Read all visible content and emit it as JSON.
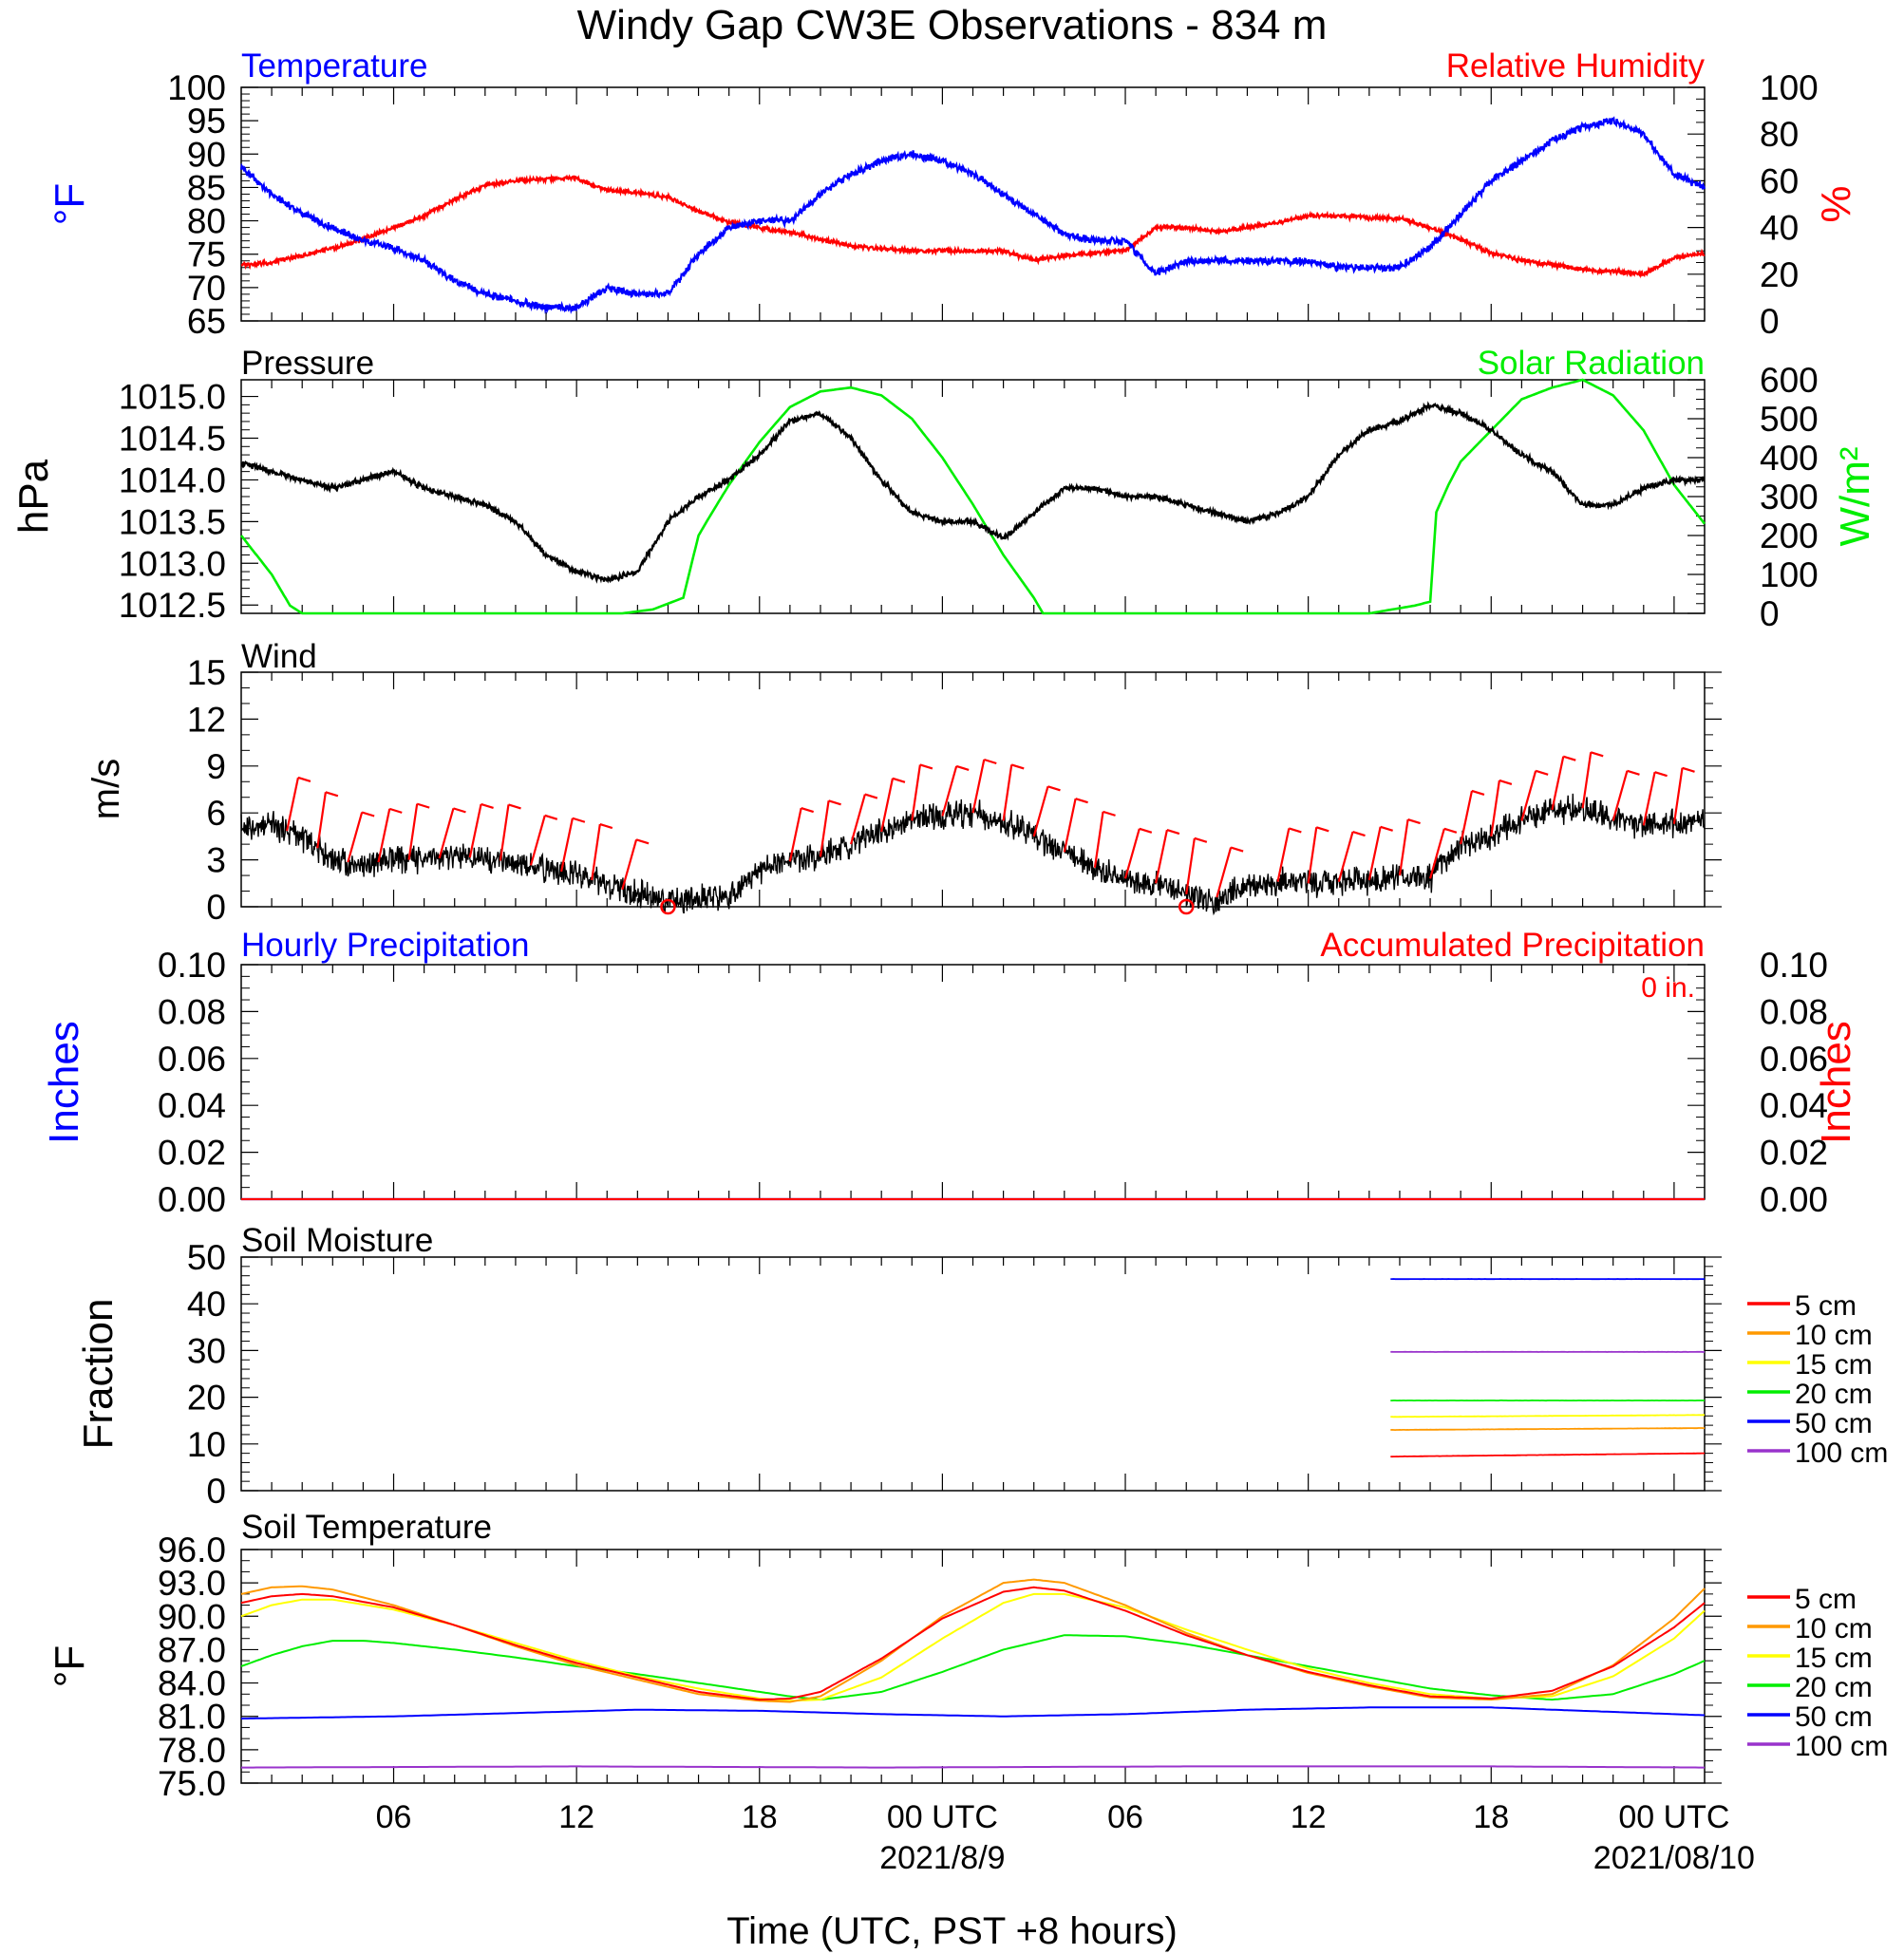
{
  "title": "Windy Gap CW3E Observations - 834 m",
  "xlabel": "Time (UTC, PST +8 hours)",
  "x_axis": {
    "range_hours_utc": [
      -1,
      47
    ],
    "ticks": [
      {
        "h": 4,
        "label": "06"
      },
      {
        "h": 10,
        "label": "12"
      },
      {
        "h": 16,
        "label": "18"
      },
      {
        "h": 22,
        "label": "00 UTC",
        "sub": "2021/8/9"
      },
      {
        "h": 28,
        "label": "06"
      },
      {
        "h": 34,
        "label": "12"
      },
      {
        "h": 40,
        "label": "18"
      },
      {
        "h": 46,
        "label": "00 UTC",
        "sub": "2021/08/10"
      }
    ]
  },
  "colors": {
    "temperature": "#0000ff",
    "humidity": "#ff0000",
    "pressure": "#000000",
    "solar": "#00ee00",
    "wind": "#000000",
    "barbs": "#ff0000",
    "depth_5": "#ff0000",
    "depth_10": "#ff9900",
    "depth_15": "#ffff00",
    "depth_20": "#00ee00",
    "depth_50": "#0000ff",
    "depth_100": "#9933cc"
  },
  "chart_data": [
    {
      "type": "line",
      "panel": "temperature_humidity",
      "left_title": "Temperature",
      "right_title": "Relative Humidity",
      "ylabel_left": "°F",
      "ylabel_right": "%",
      "ylim_left": [
        65,
        100
      ],
      "ylim_right": [
        0,
        100
      ],
      "left_ticks": [
        "65",
        "70",
        "75",
        "80",
        "85",
        "90",
        "95",
        "100"
      ],
      "right_ticks": [
        "0",
        "20",
        "40",
        "60",
        "80",
        "100"
      ],
      "series": [
        {
          "name": "Temperature",
          "axis": "left",
          "x": [
            -1,
            0,
            1,
            2,
            3,
            4,
            5,
            6,
            7,
            8,
            9,
            10,
            11,
            12,
            13,
            14,
            15,
            16,
            17,
            18,
            19,
            20,
            21,
            22,
            23,
            24,
            25,
            26,
            27,
            28,
            29,
            30,
            31,
            32,
            33,
            34,
            35,
            36,
            37,
            38,
            39,
            40,
            41,
            42,
            43,
            44,
            45,
            46,
            47
          ],
          "values": [
            88,
            84,
            81,
            79,
            77,
            76,
            74,
            71,
            69,
            68,
            67,
            67,
            70,
            69,
            69,
            75,
            79,
            80,
            80,
            84,
            87,
            89,
            90,
            89,
            87,
            84,
            81,
            78,
            77,
            77,
            72,
            74,
            74,
            74,
            74,
            74,
            73,
            73,
            73,
            76,
            81,
            86,
            89,
            92,
            94,
            95,
            93,
            87,
            85
          ]
        },
        {
          "name": "Relative Humidity",
          "axis": "right",
          "x": [
            -1,
            0,
            1,
            2,
            3,
            4,
            5,
            6,
            7,
            8,
            9,
            10,
            11,
            12,
            13,
            14,
            15,
            16,
            17,
            18,
            19,
            20,
            21,
            22,
            23,
            24,
            25,
            26,
            27,
            28,
            29,
            30,
            31,
            32,
            33,
            34,
            35,
            36,
            37,
            38,
            39,
            40,
            41,
            42,
            43,
            44,
            45,
            46,
            47
          ],
          "values": [
            24,
            25,
            28,
            31,
            35,
            40,
            45,
            52,
            58,
            60,
            61,
            61,
            56,
            55,
            53,
            47,
            42,
            40,
            38,
            35,
            32,
            31,
            30,
            30,
            30,
            30,
            26,
            28,
            29,
            30,
            40,
            40,
            38,
            40,
            42,
            45,
            45,
            44,
            44,
            40,
            35,
            29,
            26,
            24,
            22,
            21,
            20,
            27,
            29
          ]
        }
      ]
    },
    {
      "type": "line",
      "panel": "pressure_solar",
      "left_title": "Pressure",
      "right_title": "Solar Radiation",
      "ylabel_left": "hPa",
      "ylabel_right": "W/m²",
      "ylim_left": [
        1012.4,
        1015.2
      ],
      "ylim_right": [
        0,
        600
      ],
      "left_ticks": [
        "1012.5",
        "1013.0",
        "1013.5",
        "1014.0",
        "1014.5",
        "1015.0"
      ],
      "right_ticks": [
        "0",
        "100",
        "200",
        "300",
        "400",
        "500",
        "600"
      ],
      "series": [
        {
          "name": "Pressure",
          "axis": "left",
          "x": [
            -1,
            0,
            1,
            2,
            3,
            4,
            5,
            6,
            7,
            8,
            9,
            10,
            11,
            12,
            13,
            14,
            15,
            16,
            17,
            18,
            19,
            20,
            21,
            22,
            23,
            24,
            25,
            26,
            27,
            28,
            29,
            30,
            31,
            32,
            33,
            34,
            35,
            36,
            37,
            38,
            39,
            40,
            41,
            42,
            43,
            44,
            45,
            46,
            47
          ],
          "values": [
            1014.2,
            1014.1,
            1014.0,
            1013.9,
            1014.0,
            1014.1,
            1013.9,
            1013.8,
            1013.7,
            1013.5,
            1013.1,
            1012.9,
            1012.8,
            1012.9,
            1013.5,
            1013.8,
            1014.0,
            1014.3,
            1014.7,
            1014.8,
            1014.5,
            1014.0,
            1013.6,
            1013.5,
            1013.5,
            1013.3,
            1013.6,
            1013.9,
            1013.9,
            1013.8,
            1013.8,
            1013.7,
            1013.6,
            1013.5,
            1013.6,
            1013.8,
            1014.3,
            1014.6,
            1014.7,
            1014.9,
            1014.8,
            1014.6,
            1014.3,
            1014.1,
            1013.7,
            1013.7,
            1013.9,
            1014.0,
            1014.0
          ]
        },
        {
          "name": "Solar Radiation",
          "axis": "right",
          "x": [
            -1,
            0,
            0.6,
            1,
            2,
            4,
            6,
            8,
            10,
            11.5,
            12.5,
            13.5,
            14,
            14.3,
            15,
            16,
            17,
            18,
            19,
            20,
            21,
            22,
            23,
            24,
            25,
            25.3,
            26,
            30,
            36,
            37.5,
            38,
            38.2,
            38.6,
            39,
            40,
            41,
            42,
            43,
            43.5,
            44,
            45,
            46,
            47
          ],
          "values": [
            200,
            100,
            20,
            0,
            0,
            0,
            0,
            0,
            0,
            0,
            10,
            40,
            200,
            240,
            330,
            440,
            530,
            570,
            580,
            560,
            500,
            400,
            280,
            150,
            40,
            0,
            0,
            0,
            0,
            20,
            30,
            260,
            330,
            390,
            470,
            550,
            580,
            600,
            580,
            560,
            470,
            330,
            230
          ]
        }
      ]
    },
    {
      "type": "line",
      "panel": "wind",
      "title": "Wind",
      "ylabel": "m/s",
      "ylim": [
        0,
        15
      ],
      "ticks": [
        "0",
        "3",
        "6",
        "9",
        "12",
        "15"
      ],
      "series": [
        {
          "name": "Wind",
          "x": [
            -1,
            0,
            1,
            2,
            3,
            4,
            5,
            6,
            7,
            8,
            9,
            10,
            11,
            12,
            13,
            14,
            15,
            16,
            17,
            18,
            19,
            20,
            21,
            22,
            23,
            24,
            25,
            26,
            27,
            28,
            29,
            30,
            31,
            32,
            33,
            34,
            35,
            36,
            37,
            38,
            39,
            40,
            41,
            42,
            43,
            44,
            45,
            46,
            47
          ],
          "values": [
            5.0,
            5.2,
            4.5,
            3.0,
            2.7,
            3.0,
            3.0,
            3.2,
            3.1,
            2.8,
            2.5,
            2.0,
            1.4,
            0.8,
            0.5,
            0.6,
            0.6,
            2.4,
            2.9,
            3.2,
            4.0,
            4.8,
            5.5,
            5.8,
            6.0,
            5.5,
            4.5,
            3.5,
            2.5,
            1.8,
            1.5,
            0.8,
            0.3,
            1.5,
            1.6,
            1.5,
            1.6,
            1.7,
            2.0,
            1.8,
            4.0,
            4.5,
            5.5,
            6.2,
            6.3,
            5.5,
            5.2,
            5.3,
            5.5
          ]
        }
      ],
      "barb_times": [
        0.5,
        1.5,
        2.5,
        3.5,
        4.5,
        5.5,
        6.5,
        7.5,
        8.5,
        9.5,
        10.5,
        11.5,
        17,
        18,
        19,
        20,
        21,
        22,
        23,
        24,
        25,
        26,
        27,
        28,
        29,
        30,
        31,
        33,
        34,
        35,
        36,
        37,
        38,
        39,
        40,
        41,
        42,
        43,
        44,
        45,
        46
      ],
      "calm_times": [
        13,
        30
      ]
    },
    {
      "type": "line",
      "panel": "precipitation",
      "left_title": "Hourly Precipitation",
      "right_title": "Accumulated Precipitation",
      "annotation": "0 in.",
      "ylabel_left": "Inches",
      "ylabel_right": "Inches",
      "ylim": [
        0,
        0.1
      ],
      "ticks": [
        "0.00",
        "0.02",
        "0.04",
        "0.06",
        "0.08",
        "0.10"
      ],
      "series": [
        {
          "name": "Hourly Precipitation",
          "x": [
            -1,
            47
          ],
          "values": [
            0,
            0
          ]
        },
        {
          "name": "Accumulated Precipitation",
          "x": [
            -1,
            47
          ],
          "values": [
            0,
            0
          ]
        }
      ]
    },
    {
      "type": "line",
      "panel": "soil_moisture",
      "title": "Soil Moisture",
      "ylabel": "Fraction",
      "ylim": [
        0,
        50
      ],
      "ticks": [
        "0",
        "10",
        "20",
        "30",
        "40",
        "50"
      ],
      "legend": [
        "5 cm",
        "10 cm",
        "15 cm",
        "20 cm",
        "50 cm",
        "100 cm"
      ],
      "series": [
        {
          "name": "5 cm",
          "x": [
            36.7,
            47
          ],
          "values": [
            7.3,
            8.0
          ]
        },
        {
          "name": "10 cm",
          "x": [
            36.7,
            47
          ],
          "values": [
            13.0,
            13.4
          ]
        },
        {
          "name": "15 cm",
          "x": [
            36.7,
            47
          ],
          "values": [
            15.8,
            16.2
          ]
        },
        {
          "name": "20 cm",
          "x": [
            36.7,
            47
          ],
          "values": [
            19.3,
            19.3
          ]
        },
        {
          "name": "50 cm",
          "x": [
            36.7,
            47
          ],
          "values": [
            45.3,
            45.3
          ]
        },
        {
          "name": "100 cm",
          "x": [
            36.7,
            47
          ],
          "values": [
            29.7,
            29.7
          ]
        }
      ]
    },
    {
      "type": "line",
      "panel": "soil_temperature",
      "title": "Soil Temperature",
      "ylabel": "°F",
      "ylim": [
        75,
        96
      ],
      "ticks": [
        "75.0",
        "78.0",
        "81.0",
        "84.0",
        "87.0",
        "90.0",
        "93.0",
        "96.0"
      ],
      "legend": [
        "5 cm",
        "10 cm",
        "15 cm",
        "20 cm",
        "50 cm",
        "100 cm"
      ],
      "series": [
        {
          "name": "5 cm",
          "x": [
            -1,
            0,
            1,
            2,
            4,
            6,
            8,
            10,
            12,
            14,
            16,
            17,
            18,
            20,
            22,
            24,
            25,
            26,
            28,
            30,
            32,
            34,
            36,
            38,
            40,
            42,
            44,
            46,
            47
          ],
          "values": [
            91.2,
            91.8,
            92.0,
            91.8,
            90.8,
            89.2,
            87.4,
            85.8,
            84.5,
            83.2,
            82.5,
            82.6,
            83.2,
            86.2,
            89.8,
            92.2,
            92.6,
            92.3,
            90.5,
            88.3,
            86.5,
            85.0,
            83.8,
            82.8,
            82.6,
            83.3,
            85.5,
            89.0,
            91.2
          ]
        },
        {
          "name": "10 cm",
          "x": [
            -1,
            0,
            1,
            2,
            4,
            6,
            8,
            10,
            12,
            14,
            16,
            17,
            18,
            20,
            22,
            24,
            25,
            26,
            28,
            30,
            32,
            34,
            36,
            38,
            40,
            42,
            44,
            46,
            47
          ],
          "values": [
            92.0,
            92.6,
            92.7,
            92.4,
            91.0,
            89.2,
            87.3,
            85.6,
            84.3,
            83.0,
            82.4,
            82.3,
            82.8,
            86.0,
            90.0,
            93.0,
            93.3,
            93.0,
            91.0,
            88.5,
            86.5,
            84.9,
            83.7,
            82.7,
            82.5,
            83.0,
            85.6,
            89.8,
            92.5
          ]
        },
        {
          "name": "15 cm",
          "x": [
            -1,
            0,
            1,
            2,
            4,
            6,
            8,
            10,
            12,
            14,
            16,
            17,
            18,
            20,
            22,
            24,
            25,
            26,
            28,
            30,
            32,
            34,
            36,
            38,
            40,
            42,
            44,
            46,
            47
          ],
          "values": [
            90.0,
            91.0,
            91.5,
            91.5,
            90.6,
            89.2,
            87.6,
            86.0,
            84.6,
            83.5,
            82.6,
            82.4,
            82.5,
            84.5,
            88.0,
            91.2,
            92.0,
            92.0,
            90.8,
            88.8,
            87.0,
            85.3,
            84.0,
            83.0,
            82.6,
            82.8,
            84.6,
            88.0,
            90.5
          ]
        },
        {
          "name": "20 cm",
          "x": [
            -1,
            0,
            1,
            2,
            3,
            4,
            6,
            8,
            10,
            12,
            14,
            16,
            17,
            18,
            20,
            22,
            24,
            26,
            28,
            30,
            32,
            34,
            36,
            38,
            40,
            42,
            44,
            46,
            47
          ],
          "values": [
            85.5,
            86.5,
            87.3,
            87.8,
            87.8,
            87.6,
            87.0,
            86.3,
            85.5,
            84.8,
            84.0,
            83.2,
            82.8,
            82.5,
            83.2,
            85.0,
            87.0,
            88.3,
            88.2,
            87.5,
            86.5,
            85.5,
            84.5,
            83.5,
            82.9,
            82.5,
            83.0,
            84.8,
            86.0
          ]
        },
        {
          "name": "50 cm",
          "x": [
            -1,
            4,
            8,
            12,
            16,
            20,
            24,
            28,
            32,
            36,
            40,
            44,
            47
          ],
          "values": [
            80.8,
            81.0,
            81.3,
            81.6,
            81.5,
            81.2,
            81.0,
            81.2,
            81.6,
            81.8,
            81.8,
            81.4,
            81.1
          ]
        },
        {
          "name": "100 cm",
          "x": [
            -1,
            10,
            20,
            30,
            40,
            47
          ],
          "values": [
            76.4,
            76.5,
            76.4,
            76.5,
            76.5,
            76.4
          ]
        }
      ]
    }
  ]
}
